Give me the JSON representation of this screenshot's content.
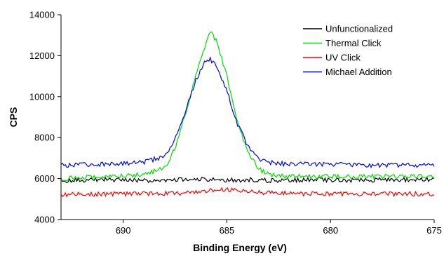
{
  "chart_data": {
    "type": "line",
    "title": "",
    "xlabel": "Binding Energy (eV)",
    "ylabel": "CPS",
    "xlim": [
      693,
      675
    ],
    "ylim": [
      4000,
      14000
    ],
    "x_reversed": true,
    "grid": false,
    "legend_position": "top-right",
    "x_ticks": [
      690,
      685,
      680,
      675
    ],
    "x_tick_labels": [
      "690",
      "685",
      "680",
      "675"
    ],
    "y_ticks": [
      4000,
      6000,
      8000,
      10000,
      12000,
      14000
    ],
    "y_tick_labels": [
      "4000",
      "6000",
      "8000",
      "10000",
      "12000",
      "14000"
    ],
    "series": [
      {
        "name": "Unfunctionalized",
        "color": "#000000",
        "x": [
          693,
          691,
          689,
          687,
          686,
          685,
          684,
          683,
          681,
          679,
          677,
          675
        ],
        "values": [
          5900,
          5950,
          5900,
          5950,
          5950,
          5900,
          5950,
          5900,
          5950,
          5900,
          5950,
          5950
        ]
      },
      {
        "name": "Thermal Click",
        "color": "#00dd00",
        "x": [
          693,
          691,
          689,
          688,
          687.5,
          687,
          686.5,
          686,
          685.8,
          685.5,
          685,
          684.5,
          684,
          683.5,
          683,
          682,
          680,
          678,
          676,
          675
        ],
        "values": [
          6000,
          6100,
          6200,
          6500,
          7500,
          9200,
          11000,
          12600,
          13200,
          12700,
          11000,
          8800,
          7300,
          6500,
          6200,
          6100,
          6100,
          6100,
          6100,
          6100
        ]
      },
      {
        "name": "UV Click",
        "color": "#ff0000",
        "x": [
          693,
          691,
          689,
          687,
          686,
          685,
          684,
          683,
          681,
          679,
          677,
          675
        ],
        "values": [
          5200,
          5250,
          5250,
          5300,
          5400,
          5450,
          5350,
          5300,
          5250,
          5250,
          5250,
          5250
        ]
      },
      {
        "name": "Michael Addition",
        "color": "#0000ff",
        "x": [
          693,
          691,
          689,
          688,
          687.5,
          687,
          686.5,
          686,
          685.8,
          685.5,
          685,
          684.5,
          684,
          683.5,
          683,
          682,
          680,
          678,
          676,
          675
        ],
        "values": [
          6650,
          6700,
          6800,
          7100,
          7900,
          9300,
          10800,
          11800,
          11800,
          11500,
          10300,
          8700,
          7600,
          7000,
          6800,
          6700,
          6700,
          6650,
          6650,
          6650
        ]
      }
    ]
  }
}
